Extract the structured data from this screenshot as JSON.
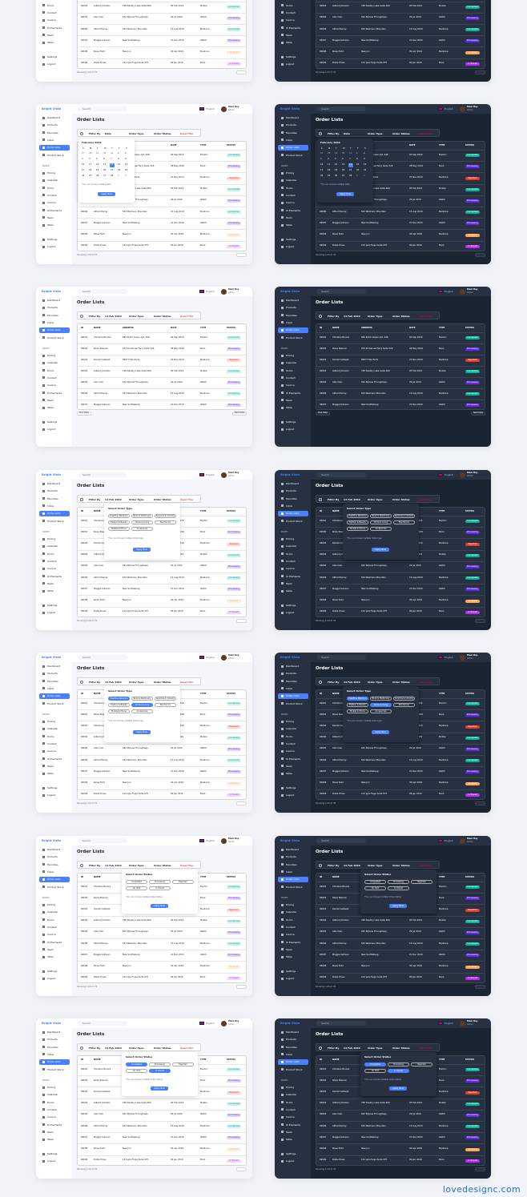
{
  "brand": "Bright Vista",
  "search": "Search",
  "language": "English",
  "user": {
    "name": "Moni Roy",
    "role": "Admin"
  },
  "sidebar": {
    "main": [
      "Dashboard",
      "Products",
      "Favorites",
      "Inbox",
      "Order Lists",
      "Product Stock"
    ],
    "pages_label": "PAGES",
    "pages": [
      "Pricing",
      "Calendar",
      "To-Do",
      "Contact",
      "Invoice",
      "UI Elements",
      "Team",
      "Table"
    ],
    "bottom": [
      "Settings",
      "Logout"
    ]
  },
  "page_title": "Order Lists",
  "filter": {
    "label": "Filter By",
    "date": "Date",
    "date_selected": "14 Feb 2019",
    "order_type": "Order Type",
    "order_status": "Order Status",
    "reset": "Reset Filter"
  },
  "table": {
    "headers": [
      "ID",
      "NAME",
      "ADDRESS",
      "DATE",
      "TYPE",
      "STATUS"
    ],
    "rows": [
      [
        "00001",
        "Christine Brooks",
        "089 Kutch Green Apt. 448",
        "04 Sep 2019",
        "Electric",
        "Completed"
      ],
      [
        "00002",
        "Rosie Pearson",
        "979 Immanuel Ferry Suite 526",
        "28 May 2019",
        "Book",
        "Processing"
      ],
      [
        "00003",
        "Darrell Caldwell",
        "8587 Frida Ports",
        "23 Nov 2019",
        "Medicine",
        "Rejected"
      ],
      [
        "00004",
        "Gilbert Johnston",
        "768 Destiny Lake Suite 600",
        "05 Feb 2019",
        "Mobile",
        "Completed"
      ],
      [
        "00005",
        "Alan Cain",
        "042 Mylene Throughway",
        "29 Jul 2019",
        "Watch",
        "Processing"
      ],
      [
        "00006",
        "Alfred Murray",
        "543 Weimann Mountain",
        "15 Aug 2019",
        "Medicine",
        "Completed"
      ],
      [
        "00007",
        "Maggie Sullivan",
        "New Scottieberg",
        "21 Dec 2019",
        "Watch",
        "Processing"
      ],
      [
        "00008",
        "Rosie Todd",
        "New Jon",
        "30 Apr 2019",
        "Medicine",
        "On Hold"
      ],
      [
        "00009",
        "Dollie Hines",
        "124 Lyla Forge Suite 975",
        "09 Jan 2019",
        "Book",
        "In Transit"
      ]
    ]
  },
  "footer": {
    "showing": "Showing 1-09 of 78",
    "prev": "Prev Date",
    "next": "Next Date"
  },
  "calendar": {
    "month": "February 2019",
    "weekdays": [
      "S",
      "M",
      "T",
      "W",
      "T",
      "F",
      "S"
    ],
    "days": [
      27,
      28,
      29,
      30,
      31,
      1,
      2,
      3,
      4,
      5,
      6,
      7,
      8,
      9,
      10,
      11,
      12,
      13,
      14,
      15,
      16,
      17,
      18,
      19,
      20,
      21,
      22,
      23,
      24,
      25,
      26,
      27,
      28,
      1,
      2
    ],
    "note": "*You can choose multiple Date",
    "apply": "Apply Now"
  },
  "order_type_popup": {
    "title": "Select Order Type",
    "options": [
      "Health & Medicine",
      "Book & Stationary",
      "Services & Industry",
      "Fashion & Beauty",
      "Home & Living",
      "Electronics",
      "Mobile & Phone",
      "Accessories"
    ],
    "note": "*You can choose multiple Order type",
    "apply": "Apply Now"
  },
  "order_status_popup": {
    "title": "Select Order Status",
    "options": [
      "Completed",
      "Processing",
      "Rejected",
      "On Hold",
      "In Transit"
    ],
    "note": "*You can choose multiple Order status",
    "apply": "Apply Now"
  },
  "watermark": "lovedesignc.com"
}
